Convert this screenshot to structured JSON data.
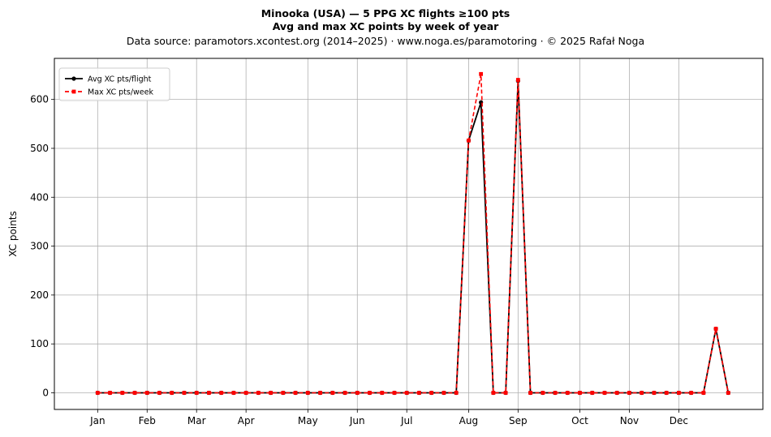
{
  "title": {
    "line1": "Minooka (USA)  —  5 PPG XC flights ≥100 pts",
    "line2": "Avg and max XC points by week of year",
    "line3": "Data source: paramotors.xcontest.org (2014–2025)  ·  www.noga.es/paramotoring  ·  © 2025 Rafał Noga"
  },
  "chart_data": {
    "type": "line",
    "title": "Minooka (USA)  —  5 PPG XC flights ≥100 pts",
    "subtitle": "Avg and max XC points by week of year",
    "xlabel": "",
    "ylabel": "XC points",
    "xlim": [
      -2.5,
      54.8
    ],
    "ylim": [
      -34,
      684
    ],
    "grid": true,
    "legend_position": "top-left",
    "x_ticks": [
      {
        "label": "Jan",
        "x": 1
      },
      {
        "label": "Feb",
        "x": 5
      },
      {
        "label": "Mar",
        "x": 9
      },
      {
        "label": "Apr",
        "x": 13
      },
      {
        "label": "May",
        "x": 18
      },
      {
        "label": "Jun",
        "x": 22
      },
      {
        "label": "Jul",
        "x": 26
      },
      {
        "label": "Aug",
        "x": 31
      },
      {
        "label": "Sep",
        "x": 35
      },
      {
        "label": "Oct",
        "x": 40
      },
      {
        "label": "Nov",
        "x": 44
      },
      {
        "label": "Dec",
        "x": 48
      }
    ],
    "y_ticks": [
      0,
      100,
      200,
      300,
      400,
      500,
      600
    ],
    "x": [
      1,
      2,
      3,
      4,
      5,
      6,
      7,
      8,
      9,
      10,
      11,
      12,
      13,
      14,
      15,
      16,
      17,
      18,
      19,
      20,
      21,
      22,
      23,
      24,
      25,
      26,
      27,
      28,
      29,
      30,
      31,
      32,
      33,
      34,
      35,
      36,
      37,
      38,
      39,
      40,
      41,
      42,
      43,
      44,
      45,
      46,
      47,
      48,
      49,
      50,
      51,
      52
    ],
    "series": [
      {
        "name": "Avg XC pts/flight",
        "color": "#000000",
        "style": "solid",
        "marker": "circle",
        "values": [
          0,
          0,
          0,
          0,
          0,
          0,
          0,
          0,
          0,
          0,
          0,
          0,
          0,
          0,
          0,
          0,
          0,
          0,
          0,
          0,
          0,
          0,
          0,
          0,
          0,
          0,
          0,
          0,
          0,
          0,
          516,
          594,
          0,
          0,
          638,
          0,
          0,
          0,
          0,
          0,
          0,
          0,
          0,
          0,
          0,
          0,
          0,
          0,
          0,
          0,
          131,
          0
        ]
      },
      {
        "name": "Max XC pts/week",
        "color": "#ff0000",
        "style": "dashed",
        "marker": "square",
        "values": [
          0,
          0,
          0,
          0,
          0,
          0,
          0,
          0,
          0,
          0,
          0,
          0,
          0,
          0,
          0,
          0,
          0,
          0,
          0,
          0,
          0,
          0,
          0,
          0,
          0,
          0,
          0,
          0,
          0,
          0,
          516,
          652,
          0,
          0,
          640,
          0,
          0,
          0,
          0,
          0,
          0,
          0,
          0,
          0,
          0,
          0,
          0,
          0,
          0,
          0,
          131,
          0
        ]
      }
    ]
  }
}
